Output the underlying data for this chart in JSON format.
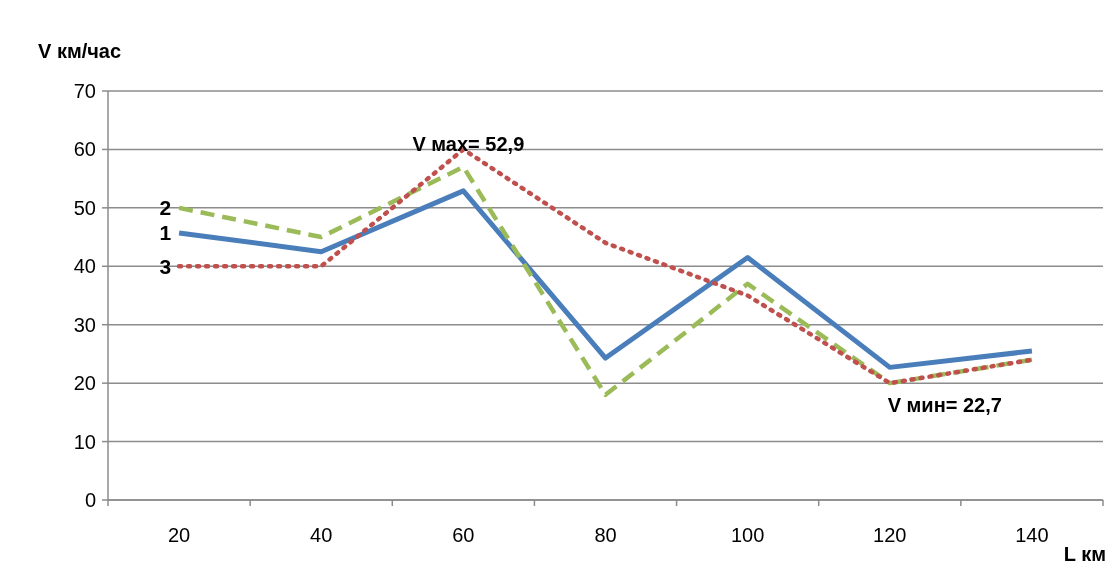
{
  "chart_data": {
    "type": "line",
    "xlabel": "L км",
    "ylabel": "V км/час",
    "categories": [
      "20",
      "40",
      "60",
      "80",
      "100",
      "120",
      "140"
    ],
    "series": [
      {
        "name": "1",
        "color": "#4a7ebb",
        "line_style": "solid",
        "values": [
          45.7,
          42.5,
          52.9,
          24.3,
          41.5,
          22.7,
          25.5
        ]
      },
      {
        "name": "2",
        "color": "#9bbb59",
        "line_style": "dashed",
        "values": [
          50,
          45,
          57,
          18,
          37,
          20,
          24
        ]
      },
      {
        "name": "3",
        "color": "#c0504d",
        "line_style": "dotted",
        "values": [
          40,
          40,
          60,
          44,
          35,
          20,
          24
        ]
      }
    ],
    "ylim": [
      0,
      70
    ],
    "yticks": [
      0,
      10,
      20,
      30,
      40,
      50,
      60,
      70
    ],
    "grid": "y",
    "legend": false,
    "marker": "none",
    "annotations": [
      {
        "text": "V мах= 52,9",
        "x": "60",
        "y": 52.9
      },
      {
        "text": "V мин= 22,7",
        "x": "120",
        "y": 22.7
      }
    ]
  }
}
